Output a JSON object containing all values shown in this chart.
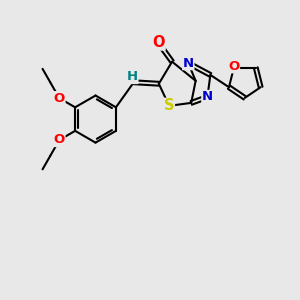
{
  "bg_color": "#e8e8e8",
  "bond_color": "#000000",
  "atom_colors": {
    "O": "#ff0000",
    "N": "#0000cd",
    "S": "#cccc00",
    "C": "#000000",
    "H": "#008080"
  },
  "bond_lw": 1.5,
  "font_size": 9.5
}
